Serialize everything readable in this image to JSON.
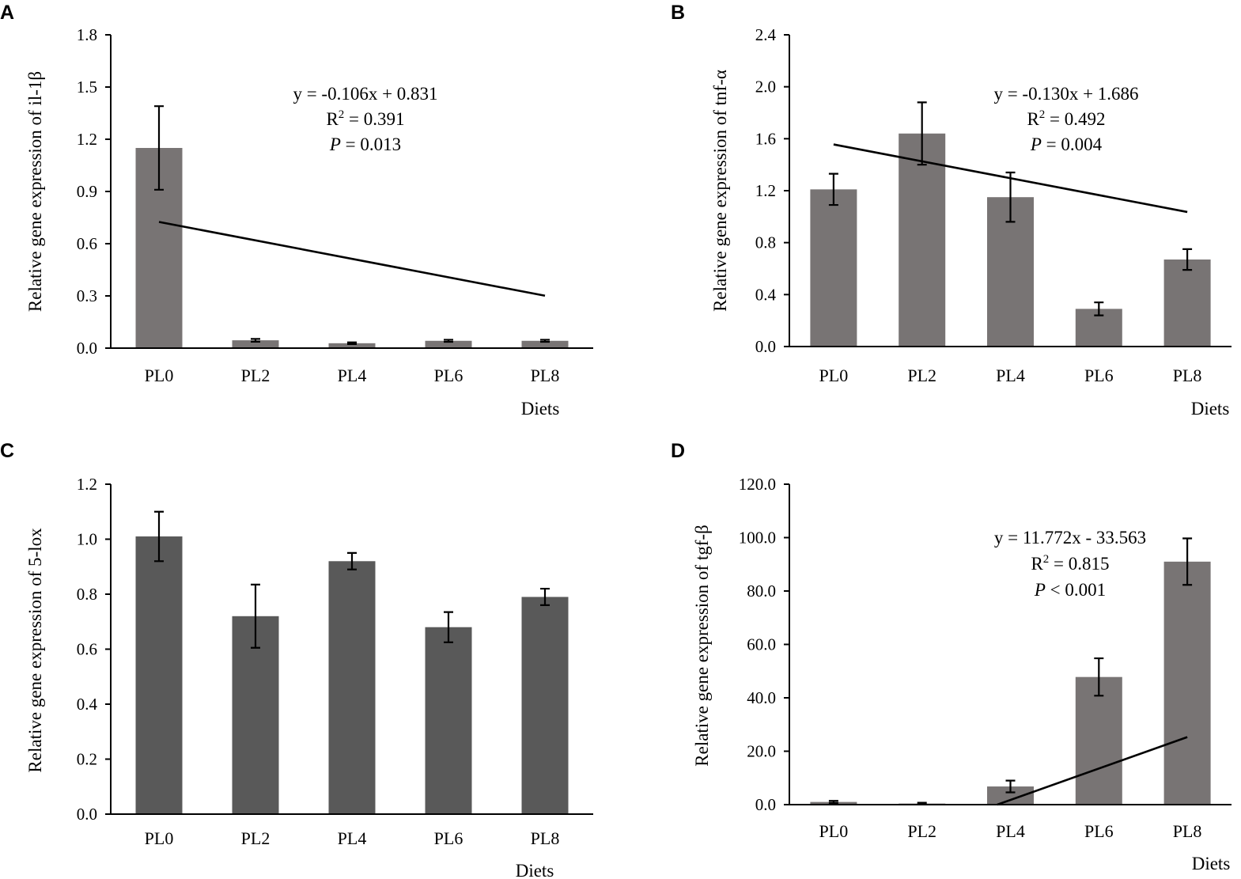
{
  "chart_data": [
    {
      "panel": "A",
      "type": "bar",
      "categories": [
        "PL0",
        "PL2",
        "PL4",
        "PL6",
        "PL8"
      ],
      "values": [
        1.15,
        0.045,
        0.028,
        0.042,
        0.042
      ],
      "errors": [
        0.24,
        0.008,
        0.005,
        0.006,
        0.006
      ],
      "ylabel": "Relative gene expression of il-1β",
      "xlabel": "Diets",
      "ylim": [
        0,
        1.8
      ],
      "yticks": [
        "0.0",
        "0.3",
        "0.6",
        "0.9",
        "1.2",
        "1.5",
        "1.8"
      ],
      "bar_color": "#787474",
      "trendline": {
        "slope": -0.106,
        "intercept": 0.831,
        "clip_zero": true
      },
      "annotation": {
        "equation": "y = -0.106x + 0.831",
        "r2_prefix": "R",
        "r2_sup": "2",
        "r2_value": " = 0.391",
        "p_letter": "P",
        "p_text": " = 0.013"
      }
    },
    {
      "panel": "B",
      "type": "bar",
      "categories": [
        "PL0",
        "PL2",
        "PL4",
        "PL6",
        "PL8"
      ],
      "values": [
        1.21,
        1.64,
        1.15,
        0.29,
        0.67
      ],
      "errors": [
        0.12,
        0.24,
        0.19,
        0.05,
        0.08
      ],
      "ylabel": "Relative gene expression of tnf-α",
      "xlabel": "Diets",
      "ylim": [
        0,
        2.4
      ],
      "yticks": [
        "0.0",
        "0.4",
        "0.8",
        "1.2",
        "1.6",
        "2.0",
        "2.4"
      ],
      "bar_color": "#787474",
      "trendline": {
        "slope": -0.13,
        "intercept": 1.686,
        "clip_zero": true
      },
      "annotation": {
        "equation": "y = -0.130x + 1.686",
        "r2_prefix": "R",
        "r2_sup": "2",
        "r2_value": " = 0.492",
        "p_letter": "P",
        "p_text": " = 0.004"
      }
    },
    {
      "panel": "C",
      "type": "bar",
      "categories": [
        "PL0",
        "PL2",
        "PL4",
        "PL6",
        "PL8"
      ],
      "values": [
        1.01,
        0.72,
        0.92,
        0.68,
        0.79
      ],
      "errors": [
        0.09,
        0.115,
        0.03,
        0.055,
        0.03
      ],
      "ylabel": "Relative gene expression of 5-lox",
      "xlabel": "Diets",
      "ylim": [
        0,
        1.2
      ],
      "yticks": [
        "0.0",
        "0.2",
        "0.4",
        "0.6",
        "0.8",
        "1.0",
        "1.2"
      ],
      "bar_color": "#595959",
      "trendline": null,
      "annotation": null
    },
    {
      "panel": "D",
      "type": "bar",
      "categories": [
        "PL0",
        "PL2",
        "PL4",
        "PL6",
        "PL8"
      ],
      "values": [
        1.0,
        0.4,
        6.8,
        47.8,
        91.0
      ],
      "errors": [
        0.4,
        0.3,
        2.2,
        7.0,
        8.7
      ],
      "ylabel": "Relative gene expression of tgf-β",
      "xlabel": "Diets",
      "ylim": [
        0,
        120
      ],
      "yticks": [
        "0.0",
        "20.0",
        "40.0",
        "60.0",
        "80.0",
        "100.0",
        "120.0"
      ],
      "bar_color": "#787474",
      "trendline": {
        "slope": 11.772,
        "intercept": -33.563,
        "clip_zero": true
      },
      "annotation": {
        "equation": "y = 11.772x - 33.563",
        "r2_prefix": "R",
        "r2_sup": "2",
        "r2_value": " = 0.815",
        "p_letter": "P",
        "p_text": " < 0.001"
      }
    }
  ]
}
